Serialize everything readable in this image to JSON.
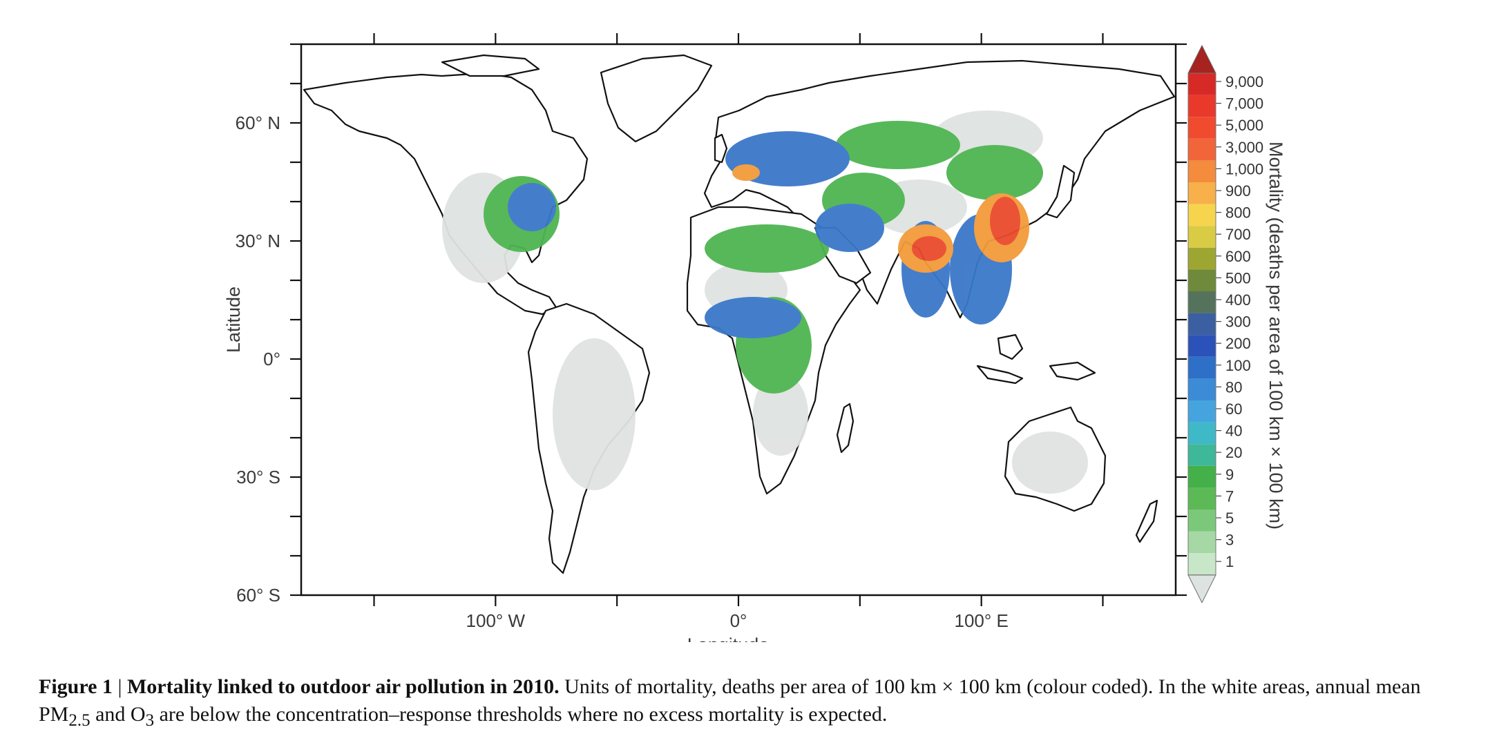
{
  "figure": {
    "axes": {
      "ylabel": "Latitude",
      "xlabel": "Longitude",
      "y_ticks": [
        {
          "value": 60,
          "label": "60° N"
        },
        {
          "value": 30,
          "label": "30° N"
        },
        {
          "value": 0,
          "label": "0°"
        },
        {
          "value": -30,
          "label": "30° S"
        },
        {
          "value": -60,
          "label": "60° S"
        }
      ],
      "x_ticks": [
        {
          "value": -100,
          "label": "100° W"
        },
        {
          "value": 0,
          "label": "0°"
        },
        {
          "value": 100,
          "label": "100° E"
        }
      ],
      "xlim": [
        -180,
        180
      ],
      "ylim": [
        -60,
        80
      ]
    },
    "colorbar": {
      "title": "Mortality (deaths per area of 100 km × 100 km)",
      "levels": [
        {
          "label": "9,000",
          "color": "#d72a26"
        },
        {
          "label": "7,000",
          "color": "#e8392b"
        },
        {
          "label": "5,000",
          "color": "#f04a2f"
        },
        {
          "label": "3,000",
          "color": "#f2643a"
        },
        {
          "label": "1,000",
          "color": "#f58b3d"
        },
        {
          "label": "900",
          "color": "#f7b04a"
        },
        {
          "label": "800",
          "color": "#f7d44e"
        },
        {
          "label": "700",
          "color": "#d9cc44"
        },
        {
          "label": "600",
          "color": "#9ea632"
        },
        {
          "label": "500",
          "color": "#6f8a3a"
        },
        {
          "label": "400",
          "color": "#55735c"
        },
        {
          "label": "300",
          "color": "#3b5fa0"
        },
        {
          "label": "200",
          "color": "#2b52b8"
        },
        {
          "label": "100",
          "color": "#2e6fc8"
        },
        {
          "label": "80",
          "color": "#3b8bd6"
        },
        {
          "label": "60",
          "color": "#45a4de"
        },
        {
          "label": "40",
          "color": "#3fb9c8"
        },
        {
          "label": "20",
          "color": "#3fb89a"
        },
        {
          "label": "9",
          "color": "#43b04a"
        },
        {
          "label": "7",
          "color": "#5cba56"
        },
        {
          "label": "5",
          "color": "#7cc87a"
        },
        {
          "label": "3",
          "color": "#a5d8a4"
        },
        {
          "label": "1",
          "color": "#c8e6c8"
        }
      ],
      "top_cap_color": "#a72320",
      "bottom_cap_color": "#dde3e0"
    },
    "map_colors": {
      "background": "#ffffff",
      "coast": "#111111",
      "light": "#dfe3e1",
      "green": "#4fb552",
      "blue": "#3a78c9",
      "orange": "#f39a3b",
      "red": "#ea4a2c"
    }
  },
  "caption": {
    "label": "Figure 1",
    "separator": " | ",
    "title": "Mortality linked to outdoor air pollution in 2010.",
    "text_1": " Units of mortality, deaths per area of 100 km × 100 km (colour coded). In the white areas, annual mean PM",
    "sub_1": "2.5",
    "text_2": " and O",
    "sub_2": "3",
    "text_3": " are below the concentration–response thresholds where no excess mortality is expected."
  }
}
